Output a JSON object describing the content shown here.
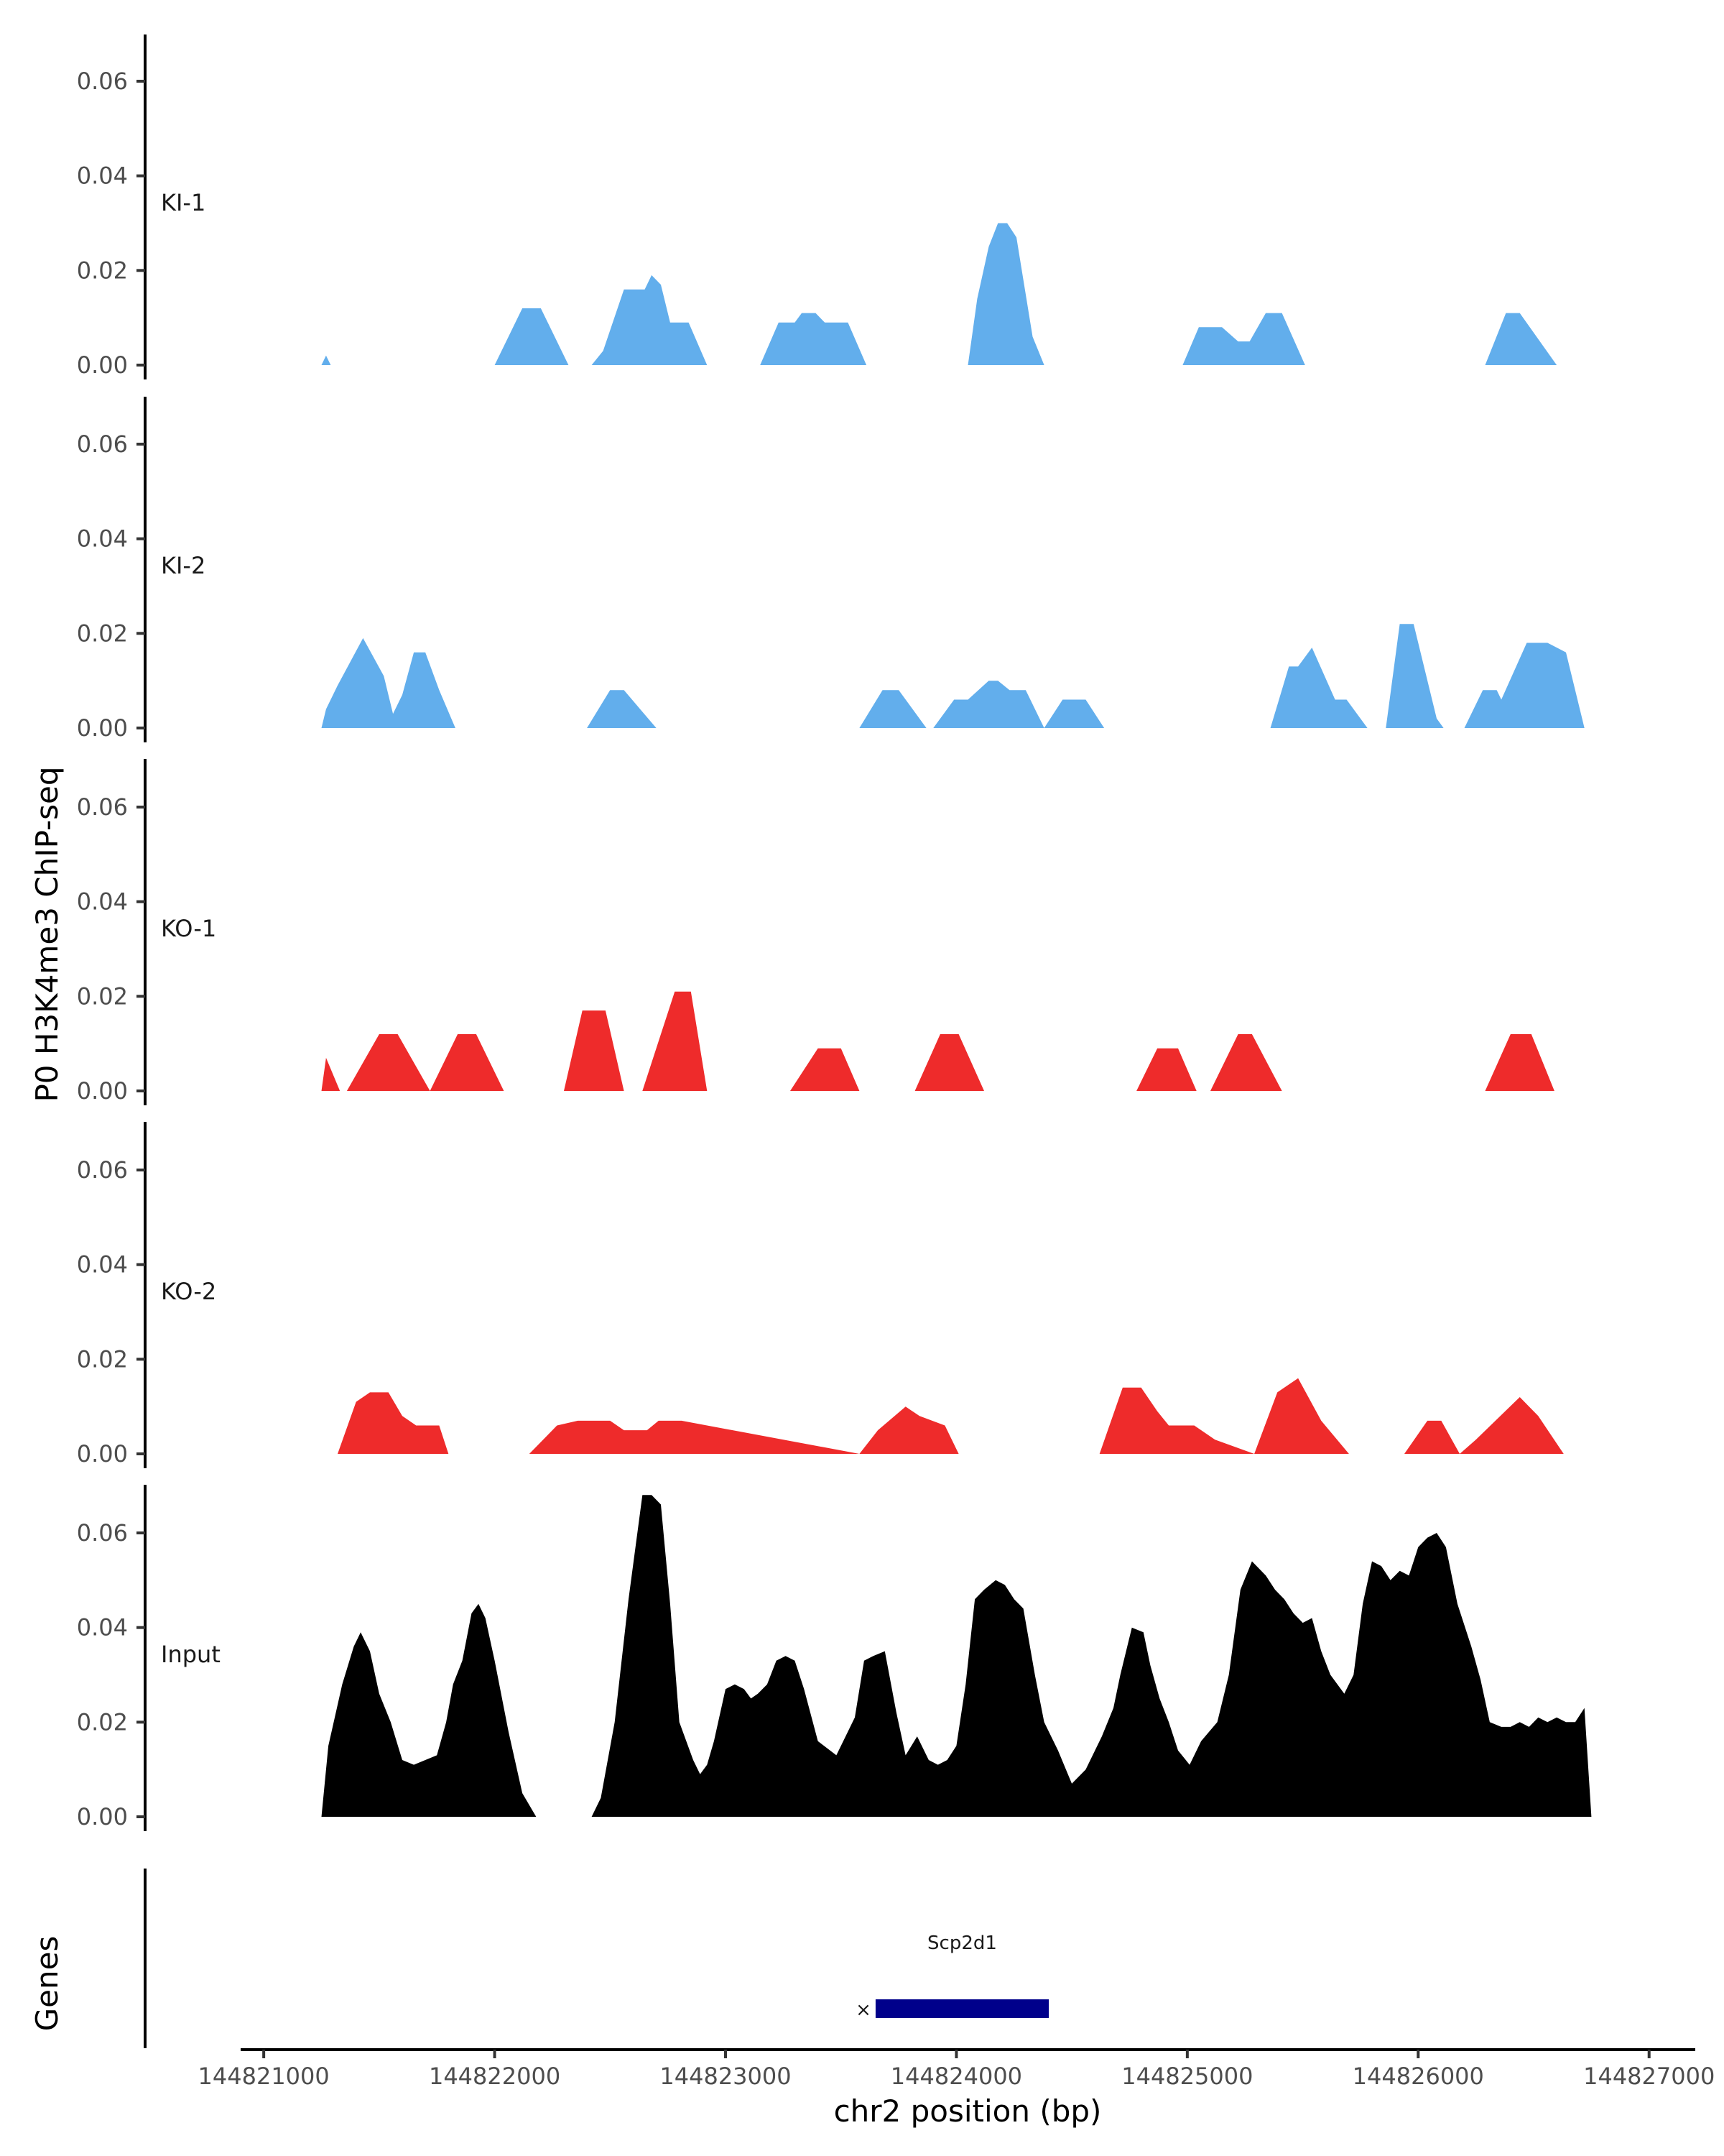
{
  "chart_data": {
    "type": "area",
    "ylabel": "P0 H3K4me3 ChIP-seq",
    "xlabel": "chr2 position (bp)",
    "gene_panel_label": "Genes",
    "ylim": [
      0,
      0.07
    ],
    "xlim": [
      144820900,
      144827200
    ],
    "y_ticks": [
      "0.00",
      "0.02",
      "0.04",
      "0.06"
    ],
    "x_ticks": [
      "144821000",
      "144822000",
      "144823000",
      "144824000",
      "144825000",
      "144826000",
      "144827000"
    ],
    "colors": {
      "KI": "#62aeec",
      "KO": "#ee2b2b",
      "Input": "#000000",
      "gene": "#00008b"
    },
    "tracks": [
      {
        "name": "KI-1",
        "color": "#62aeec",
        "x": [
          144821250,
          144821270,
          144821290,
          144822000,
          144822120,
          144822200,
          144822320,
          144822420,
          144822470,
          144822560,
          144822650,
          144822680,
          144822720,
          144822760,
          144822840,
          144822920,
          144823150,
          144823230,
          144823300,
          144823330,
          144823390,
          144823430,
          144823530,
          144823610,
          144824050,
          144824090,
          144824140,
          144824180,
          144824220,
          144824260,
          144824330,
          144824380,
          144824980,
          144825050,
          144825150,
          144825220,
          144825270,
          144825340,
          144825410,
          144825510,
          144826290,
          144826380,
          144826440,
          144826600
        ],
        "y": [
          0,
          0.002,
          0,
          0,
          0.012,
          0.012,
          0,
          0,
          0.003,
          0.016,
          0.016,
          0.019,
          0.017,
          0.009,
          0.009,
          0,
          0,
          0.009,
          0.009,
          0.011,
          0.011,
          0.009,
          0.009,
          0,
          0,
          0.014,
          0.025,
          0.03,
          0.03,
          0.027,
          0.006,
          0,
          0,
          0.008,
          0.008,
          0.005,
          0.005,
          0.011,
          0.011,
          0,
          0,
          0.011,
          0.011,
          0
        ]
      },
      {
        "name": "KI-2",
        "color": "#62aeec",
        "x": [
          144821250,
          144821270,
          144821320,
          144821430,
          144821520,
          144821560,
          144821600,
          144821650,
          144821700,
          144821760,
          144821830,
          144821900,
          144822400,
          144822500,
          144822560,
          144822700,
          144823580,
          144823680,
          144823750,
          144823870,
          144823900,
          144823990,
          144824050,
          144824140,
          144824180,
          144824230,
          144824300,
          144824380,
          144824460,
          144824560,
          144824640,
          144825360,
          144825440,
          144825480,
          144825540,
          144825640,
          144825690,
          144825720,
          144825780,
          144825860,
          144825920,
          144825980,
          144826080,
          144826110,
          144826200,
          144826280,
          144826340,
          144826360,
          144826470,
          144826560,
          144826640,
          144826720
        ],
        "y": [
          0,
          0.004,
          0.009,
          0.019,
          0.011,
          0.003,
          0.007,
          0.016,
          0.016,
          0.008,
          0,
          0,
          0,
          0.008,
          0.008,
          0,
          0,
          0.008,
          0.008,
          0,
          0,
          0.006,
          0.006,
          0.01,
          0.01,
          0.008,
          0.008,
          0,
          0.006,
          0.006,
          0,
          0,
          0.013,
          0.013,
          0.017,
          0.006,
          0.006,
          0.004,
          0,
          0,
          0.022,
          0.022,
          0.002,
          0,
          0,
          0.008,
          0.008,
          0.006,
          0.018,
          0.018,
          0.016,
          0
        ]
      },
      {
        "name": "KO-1",
        "color": "#ee2b2b",
        "x": [
          144821250,
          144821270,
          144821330,
          144821360,
          144821500,
          144821580,
          144821720,
          144821840,
          144821920,
          144822040,
          144822300,
          144822380,
          144822480,
          144822560,
          144822640,
          144822720,
          144822780,
          144822850,
          144822920,
          144823280,
          144823400,
          144823500,
          144823580,
          144823820,
          144823930,
          144824010,
          144824120,
          144824780,
          144824870,
          144824960,
          144825040,
          144825100,
          144825220,
          144825280,
          144825410,
          144826290,
          144826400,
          144826490,
          144826590
        ],
        "y": [
          0,
          0.007,
          0,
          0,
          0.012,
          0.012,
          0,
          0.012,
          0.012,
          0,
          0,
          0.017,
          0.017,
          0,
          0,
          0.012,
          0.021,
          0.021,
          0,
          0,
          0.009,
          0.009,
          0,
          0,
          0.012,
          0.012,
          0,
          0,
          0.009,
          0.009,
          0,
          0,
          0.012,
          0.012,
          0,
          0,
          0.012,
          0.012,
          0
        ]
      },
      {
        "name": "KO-2",
        "color": "#ee2b2b",
        "x": [
          144821320,
          144821400,
          144821460,
          144821540,
          144821600,
          144821660,
          144821760,
          144821800,
          144822150,
          144822270,
          144822360,
          144822500,
          144822560,
          144822660,
          144822710,
          144822810,
          144823580,
          144823660,
          144823780,
          144823840,
          144823950,
          144824010,
          144824620,
          144824720,
          144824800,
          144824870,
          144824920,
          144825030,
          144825120,
          144825290,
          144825390,
          144825480,
          144825580,
          144825700,
          144825940,
          144826040,
          144826100,
          144826180,
          144826250,
          144826440,
          144826520,
          144826630
        ],
        "y": [
          0,
          0.011,
          0.013,
          0.013,
          0.008,
          0.006,
          0.006,
          0,
          0,
          0.006,
          0.007,
          0.007,
          0.005,
          0.005,
          0.007,
          0.007,
          0,
          0.005,
          0.01,
          0.008,
          0.006,
          0,
          0,
          0.014,
          0.014,
          0.009,
          0.006,
          0.006,
          0.003,
          0,
          0.013,
          0.016,
          0.007,
          0,
          0,
          0.007,
          0.007,
          0,
          0.003,
          0.012,
          0.008,
          0
        ]
      },
      {
        "name": "Input",
        "color": "#000000",
        "x": [
          144821250,
          144821280,
          144821340,
          144821390,
          144821420,
          144821460,
          144821500,
          144821550,
          144821600,
          144821650,
          144821700,
          144821750,
          144821790,
          144821820,
          144821860,
          144821900,
          144821930,
          144821960,
          144822000,
          144822060,
          144822120,
          144822180,
          144822220,
          144822420,
          144822460,
          144822520,
          144822580,
          144822640,
          144822680,
          144822720,
          144822760,
          144822800,
          144822860,
          144822890,
          144822920,
          144822950,
          144823000,
          144823040,
          144823080,
          144823110,
          144823140,
          144823180,
          144823220,
          144823260,
          144823300,
          144823340,
          144823400,
          144823480,
          144823560,
          144823600,
          144823640,
          144823690,
          144823740,
          144823780,
          144823830,
          144823880,
          144823920,
          144823960,
          144824000,
          144824040,
          144824080,
          144824120,
          144824170,
          144824210,
          144824250,
          144824290,
          144824340,
          144824380,
          144824440,
          144824500,
          144824560,
          144824630,
          144824680,
          144824710,
          144824760,
          144824810,
          144824840,
          144824880,
          144824920,
          144824960,
          144825010,
          144825060,
          144825130,
          144825180,
          144825230,
          144825280,
          144825340,
          144825380,
          144825420,
          144825460,
          144825500,
          144825540,
          144825580,
          144825620,
          144825680,
          144825720,
          144825760,
          144825800,
          144825840,
          144825880,
          144825920,
          144825960,
          144826000,
          144826040,
          144826080,
          144826120,
          144826170,
          144826230,
          144826270,
          144826310,
          144826360,
          144826400,
          144826440,
          144826480,
          144826520,
          144826560,
          144826600,
          144826640,
          144826680,
          144826720,
          144826750,
          144826780,
          144826800,
          144826820
        ],
        "y": [
          0,
          0.015,
          0.028,
          0.036,
          0.039,
          0.035,
          0.026,
          0.02,
          0.012,
          0.011,
          0.012,
          0.013,
          0.02,
          0.028,
          0.033,
          0.043,
          0.045,
          0.042,
          0.033,
          0.018,
          0.005,
          0,
          0,
          0,
          0.004,
          0.02,
          0.046,
          0.068,
          0.068,
          0.066,
          0.045,
          0.02,
          0.012,
          0.009,
          0.011,
          0.016,
          0.027,
          0.028,
          0.027,
          0.025,
          0.026,
          0.028,
          0.033,
          0.034,
          0.033,
          0.027,
          0.016,
          0.013,
          0.021,
          0.033,
          0.034,
          0.035,
          0.022,
          0.013,
          0.017,
          0.012,
          0.011,
          0.012,
          0.015,
          0.028,
          0.046,
          0.048,
          0.05,
          0.049,
          0.046,
          0.044,
          0.03,
          0.02,
          0.014,
          0.007,
          0.01,
          0.017,
          0.023,
          0.03,
          0.04,
          0.039,
          0.032,
          0.025,
          0.02,
          0.014,
          0.011,
          0.016,
          0.02,
          0.03,
          0.048,
          0.054,
          0.051,
          0.048,
          0.046,
          0.043,
          0.041,
          0.042,
          0.035,
          0.03,
          0.026,
          0.03,
          0.045,
          0.054,
          0.053,
          0.05,
          0.052,
          0.051,
          0.057,
          0.059,
          0.06,
          0.057,
          0.045,
          0.036,
          0.029,
          0.02,
          0.019,
          0.019,
          0.02,
          0.019,
          0.021,
          0.02,
          0.021,
          0.02,
          0.02,
          0.023,
          0,
          0,
          0,
          0
        ]
      }
    ],
    "gene": {
      "name": "Scp2d1",
      "start": 144823650,
      "end": 144824400,
      "strand": "-"
    }
  }
}
